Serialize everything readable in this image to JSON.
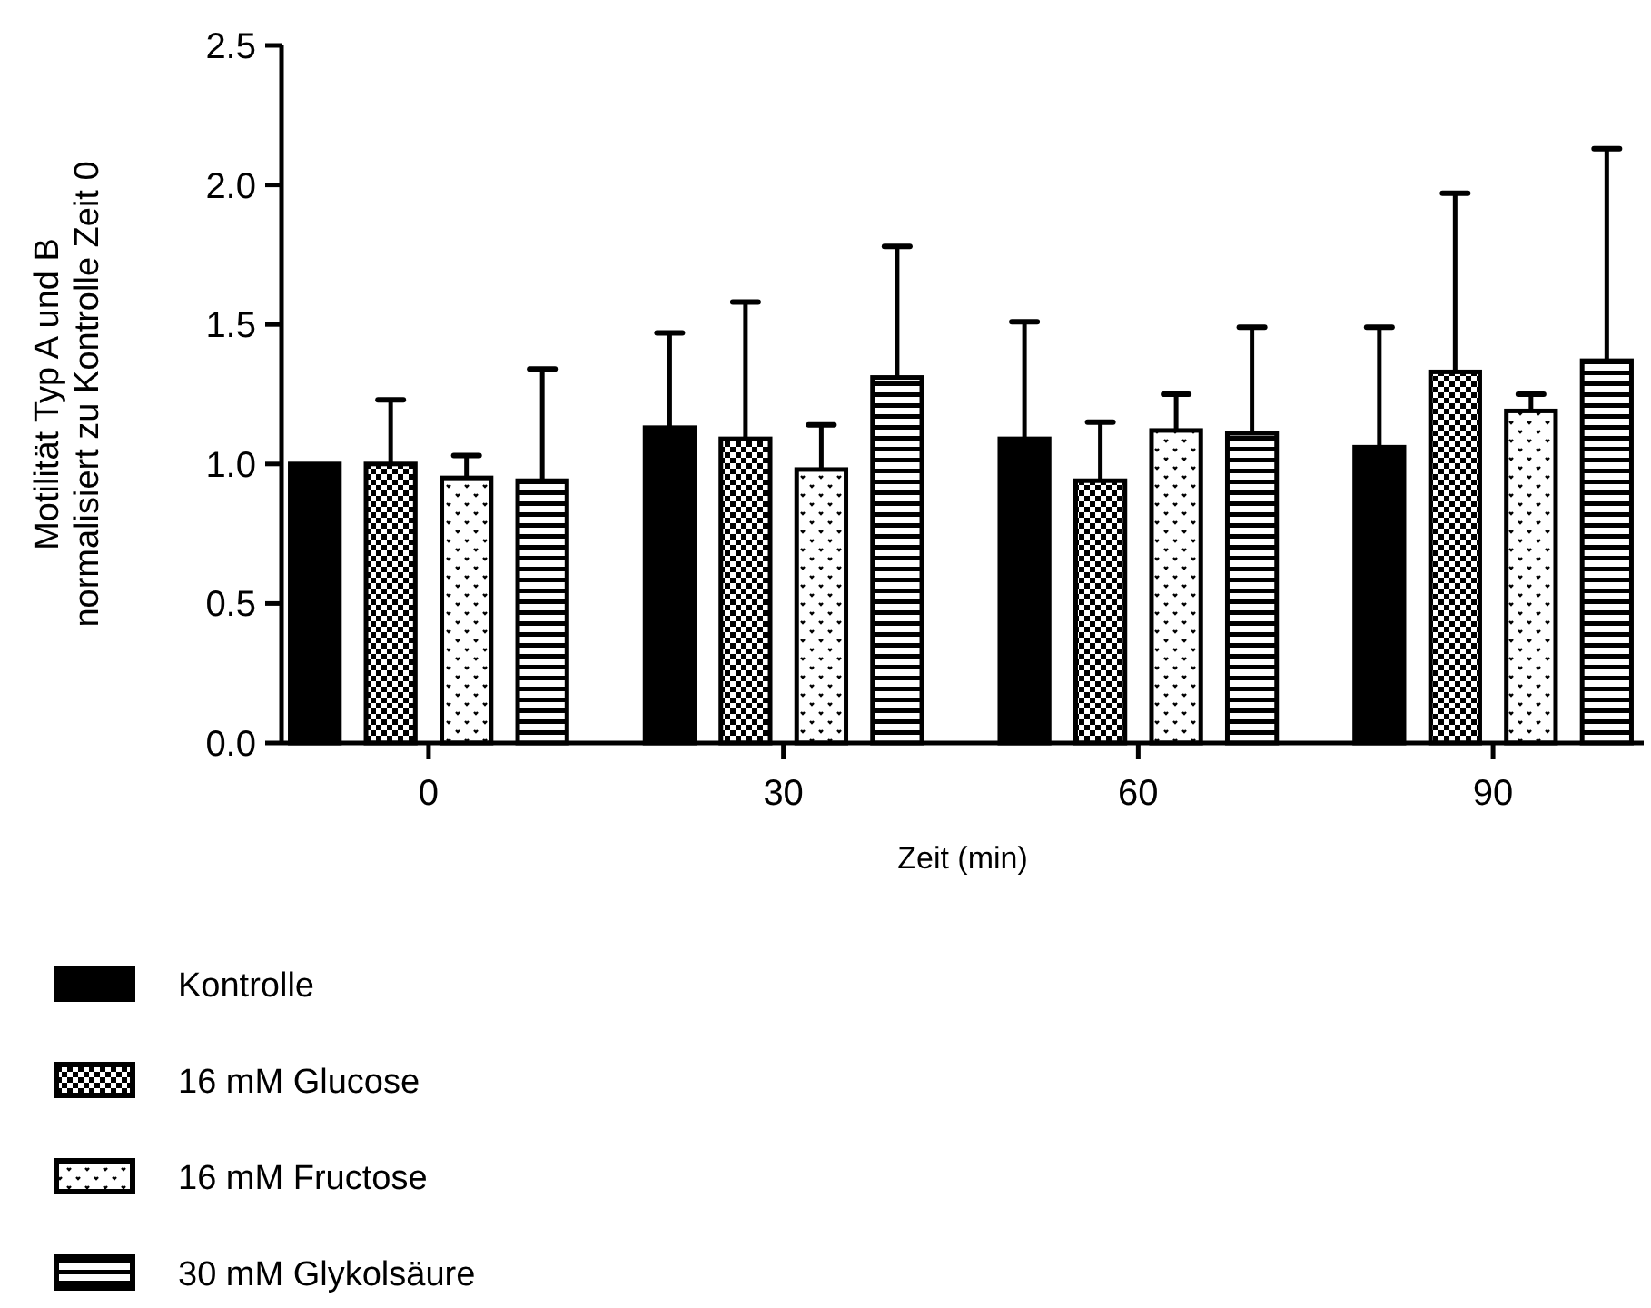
{
  "chart_data": {
    "type": "bar",
    "xlabel": "Zeit (min)",
    "ylabel": "Motilität Typ A und B\nnormalisiert zu Kontrolle Zeit 0",
    "categories": [
      "0",
      "30",
      "60",
      "90"
    ],
    "ylim": [
      0,
      2.5
    ],
    "yticks": [
      {
        "value": 0,
        "label": "0.0"
      },
      {
        "value": 0.5,
        "label": "0.5"
      },
      {
        "value": 1,
        "label": "1.0"
      },
      {
        "value": 1.5,
        "label": "1.5"
      },
      {
        "value": 2,
        "label": "2.0"
      },
      {
        "value": 2.5,
        "label": "2.5"
      }
    ],
    "grid": false,
    "legend": "bottom",
    "series": [
      {
        "name": "Kontrolle",
        "color": "#000000",
        "values": [
          1.0,
          1.13,
          1.09,
          1.06
        ],
        "errors": [
          null,
          [
            1.13,
            1.47
          ],
          [
            1.09,
            1.51
          ],
          [
            1.06,
            1.49
          ]
        ]
      },
      {
        "name": "16 mM Glucose",
        "color": "#000000",
        "values": [
          1.0,
          1.09,
          0.94,
          1.33
        ],
        "errors": [
          [
            1.0,
            1.23
          ],
          [
            1.09,
            1.58
          ],
          [
            0.94,
            1.15
          ],
          [
            1.33,
            1.97
          ]
        ]
      },
      {
        "name": "16 mM Fructose",
        "color": "#000000",
        "values": [
          0.95,
          0.98,
          1.12,
          1.19
        ],
        "errors": [
          [
            0.95,
            1.03
          ],
          [
            0.98,
            1.14
          ],
          [
            1.12,
            1.25
          ],
          [
            1.19,
            1.25
          ]
        ]
      },
      {
        "name": "30 mM Glykolsäure",
        "color": "#000000",
        "values": [
          0.94,
          1.31,
          1.11,
          1.37
        ],
        "errors": [
          [
            0.94,
            1.34
          ],
          [
            1.31,
            1.78
          ],
          [
            1.11,
            1.49
          ],
          [
            1.37,
            2.13
          ]
        ]
      }
    ]
  }
}
